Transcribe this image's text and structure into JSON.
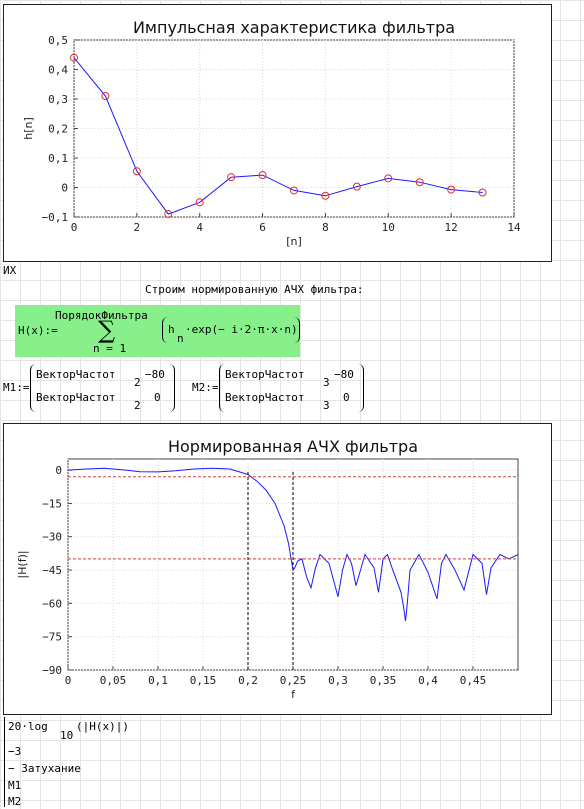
{
  "charts": [
    {
      "type": "scatter",
      "title": "Импульсная характеристика фильтра",
      "xlabel": "[n]",
      "ylabel": "h[n]",
      "xlim": [
        0,
        14
      ],
      "ylim": [
        -0.1,
        0.5
      ],
      "xticks": [
        "0",
        "2",
        "4",
        "6",
        "8",
        "10",
        "12",
        "14"
      ],
      "yticks": [
        "0,5",
        "0,4",
        "0,3",
        "0,2",
        "0,1",
        "0",
        "−0,1"
      ],
      "grid": true,
      "series": [
        {
          "color": "#1a1aff",
          "marker_color": "#e03030",
          "x": [
            0,
            1,
            2,
            3,
            4,
            5,
            6,
            7,
            8,
            9,
            10,
            11,
            12,
            13
          ],
          "y": [
            0.44,
            0.31,
            0.055,
            -0.09,
            -0.05,
            0.035,
            0.042,
            -0.01,
            -0.028,
            0.003,
            0.031,
            0.018,
            -0.007,
            -0.017
          ]
        }
      ]
    },
    {
      "type": "line",
      "title": "Нормированная АЧХ фильтра",
      "xlabel": "f",
      "ylabel": "|H(f)|",
      "xlim": [
        0,
        0.5
      ],
      "ylim": [
        -90,
        5
      ],
      "xticks": [
        "0",
        "0,05",
        "0,1",
        "0,15",
        "0,2",
        "0,25",
        "0,3",
        "0,35",
        "0,4",
        "0,45"
      ],
      "yticks": [
        "0",
        "−15",
        "−30",
        "−45",
        "−60",
        "−75",
        "−90"
      ],
      "grid": true,
      "series": [
        {
          "color": "#1a1aff",
          "x": [
            0,
            0.02,
            0.04,
            0.06,
            0.08,
            0.1,
            0.12,
            0.14,
            0.16,
            0.18,
            0.2,
            0.21,
            0.22,
            0.23,
            0.24,
            0.245,
            0.25,
            0.252,
            0.255,
            0.26,
            0.265,
            0.27,
            0.275,
            0.28,
            0.29,
            0.3,
            0.305,
            0.31,
            0.315,
            0.32,
            0.33,
            0.34,
            0.345,
            0.35,
            0.355,
            0.36,
            0.37,
            0.373,
            0.375,
            0.377,
            0.38,
            0.39,
            0.4,
            0.41,
            0.415,
            0.42,
            0.43,
            0.44,
            0.45,
            0.46,
            0.465,
            0.47,
            0.48,
            0.49,
            0.5
          ],
          "y": [
            0,
            0.5,
            0.8,
            0.2,
            -0.7,
            -0.8,
            -0.3,
            0.5,
            0.8,
            0.5,
            -2,
            -5,
            -9,
            -15,
            -25,
            -33,
            -45,
            -44,
            -41,
            -40,
            -48,
            -53,
            -44,
            -38,
            -42,
            -57,
            -45,
            -38,
            -42,
            -52,
            -38,
            -44,
            -55,
            -40,
            -38,
            -44,
            -55,
            -62,
            -68,
            -60,
            -45,
            -38,
            -46,
            -58,
            -42,
            -38,
            -45,
            -54,
            -38,
            -42,
            -56,
            -44,
            -38,
            -40,
            -38
          ]
        },
        {
          "color": "#d04040",
          "dashed": true,
          "x": [
            0,
            0.5
          ],
          "y": [
            -3,
            -3
          ]
        },
        {
          "color": "#d04040",
          "dashed": true,
          "x": [
            0,
            0.5
          ],
          "y": [
            -40,
            -40
          ]
        },
        {
          "color": "#000000",
          "dashed": true,
          "x": [
            0.2,
            0.2
          ],
          "y": [
            -90,
            0
          ]
        },
        {
          "color": "#000000",
          "dashed": true,
          "x": [
            0.25,
            0.25
          ],
          "y": [
            -90,
            0
          ]
        }
      ]
    }
  ],
  "worksheet": {
    "ix_label": "ИХ",
    "build_text": "Строим нормированную АЧХ фильтра:",
    "h_def": {
      "lhs": "H(x):=",
      "sum_upper": "ПорядокФильтра",
      "sum_symbol": "∑",
      "sum_lower": "n = 1",
      "body_h": "h",
      "body_sub": "n",
      "body_rest": "·exp(− i·2·π·x·n)"
    },
    "m1": {
      "lhs": "M1:=",
      "r1c1": "ВекторЧастот",
      "r1sub": "2",
      "r1c2": "−80",
      "r2c1": "ВекторЧастот",
      "r2sub": "2",
      "r2c2": "0"
    },
    "m2": {
      "lhs": "M2:=",
      "r1c1": "ВекторЧастот",
      "r1sub": "3",
      "r1c2": "−80",
      "r2c1": "ВекторЧастот",
      "r2sub": "3",
      "r2c2": "0"
    },
    "yaxis_expr": {
      "line1_a": "20·log",
      "line1_sub": "10",
      "line1_b": "(|H(x)|)",
      "line2": "−3",
      "line3": "− Затухание",
      "line4": "M1",
      "line5": "M2"
    }
  }
}
